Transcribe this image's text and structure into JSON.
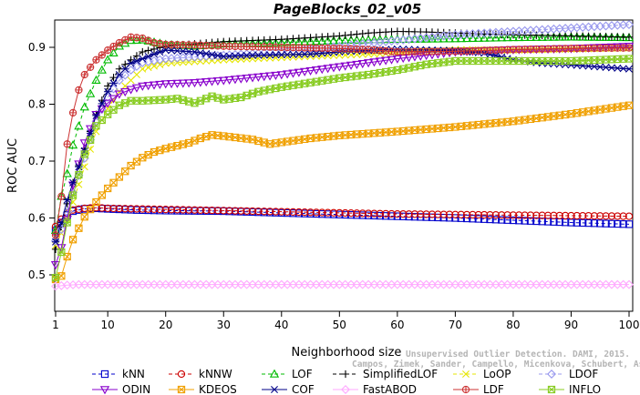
{
  "watermark": {
    "line1": "Unsupervised Outlier Detection. DAMI, 2015.",
    "line2": "Campos, Zimek, Sander, Campello, Micenkova, Schubert, Assent, Houle"
  },
  "chart_data": {
    "type": "line",
    "title": "PageBlocks_02_v05",
    "xlabel": "Neighborhood size",
    "ylabel": "ROC AUC",
    "xlim": [
      0,
      100
    ],
    "ylim": [
      0.45,
      0.95
    ],
    "xticks": [
      1,
      10,
      20,
      30,
      40,
      50,
      60,
      70,
      80,
      90,
      100
    ],
    "yticks": [
      0.5,
      0.6,
      0.7,
      0.8,
      0.9
    ],
    "grid": false,
    "legend_position": "bottom",
    "series": [
      {
        "name": "kNN",
        "color": "#0000cc",
        "marker": "square",
        "line": "dashed",
        "points": [
          [
            1,
            0.578
          ],
          [
            2,
            0.592
          ],
          [
            3,
            0.605
          ],
          [
            4,
            0.612
          ],
          [
            6,
            0.616
          ],
          [
            8,
            0.617
          ],
          [
            10,
            0.616
          ],
          [
            15,
            0.614
          ],
          [
            20,
            0.613
          ],
          [
            30,
            0.612
          ],
          [
            40,
            0.609
          ],
          [
            50,
            0.606
          ],
          [
            60,
            0.603
          ],
          [
            70,
            0.6
          ],
          [
            80,
            0.596
          ],
          [
            90,
            0.592
          ],
          [
            100,
            0.589
          ]
        ]
      },
      {
        "name": "kNNW",
        "color": "#cc0000",
        "marker": "circle",
        "line": "dashed",
        "points": [
          [
            1,
            0.585
          ],
          [
            2,
            0.598
          ],
          [
            3,
            0.608
          ],
          [
            4,
            0.614
          ],
          [
            6,
            0.617
          ],
          [
            8,
            0.618
          ],
          [
            10,
            0.617
          ],
          [
            15,
            0.616
          ],
          [
            20,
            0.615
          ],
          [
            30,
            0.613
          ],
          [
            40,
            0.611
          ],
          [
            50,
            0.609
          ],
          [
            60,
            0.607
          ],
          [
            70,
            0.606
          ],
          [
            80,
            0.605
          ],
          [
            90,
            0.604
          ],
          [
            100,
            0.603
          ]
        ]
      },
      {
        "name": "LOF",
        "color": "#00bb00",
        "marker": "triangle-up",
        "line": "dashed",
        "points": [
          [
            1,
            0.578
          ],
          [
            2,
            0.638
          ],
          [
            3,
            0.678
          ],
          [
            4,
            0.728
          ],
          [
            6,
            0.795
          ],
          [
            8,
            0.842
          ],
          [
            10,
            0.878
          ],
          [
            12,
            0.902
          ],
          [
            14,
            0.912
          ],
          [
            16,
            0.913
          ],
          [
            20,
            0.905
          ],
          [
            25,
            0.902
          ],
          [
            30,
            0.906
          ],
          [
            40,
            0.908
          ],
          [
            50,
            0.912
          ],
          [
            60,
            0.914
          ],
          [
            70,
            0.915
          ],
          [
            80,
            0.917
          ],
          [
            90,
            0.918
          ],
          [
            100,
            0.917
          ]
        ]
      },
      {
        "name": "SimplifiedLOF",
        "color": "#000000",
        "marker": "plus",
        "line": "dashed",
        "points": [
          [
            1,
            0.545
          ],
          [
            2,
            0.585
          ],
          [
            3,
            0.625
          ],
          [
            4,
            0.662
          ],
          [
            6,
            0.722
          ],
          [
            8,
            0.782
          ],
          [
            10,
            0.832
          ],
          [
            12,
            0.862
          ],
          [
            14,
            0.878
          ],
          [
            16,
            0.892
          ],
          [
            20,
            0.902
          ],
          [
            25,
            0.906
          ],
          [
            30,
            0.91
          ],
          [
            40,
            0.914
          ],
          [
            50,
            0.92
          ],
          [
            55,
            0.925
          ],
          [
            60,
            0.928
          ],
          [
            65,
            0.927
          ],
          [
            70,
            0.925
          ],
          [
            80,
            0.922
          ],
          [
            90,
            0.92
          ],
          [
            100,
            0.918
          ]
        ]
      },
      {
        "name": "LoOP",
        "color": "#e6e600",
        "marker": "x",
        "line": "dashed",
        "points": [
          [
            1,
            0.552
          ],
          [
            2,
            0.573
          ],
          [
            3,
            0.598
          ],
          [
            4,
            0.628
          ],
          [
            6,
            0.69
          ],
          [
            8,
            0.752
          ],
          [
            10,
            0.792
          ],
          [
            12,
            0.822
          ],
          [
            14,
            0.842
          ],
          [
            16,
            0.862
          ],
          [
            20,
            0.872
          ],
          [
            30,
            0.878
          ],
          [
            40,
            0.882
          ],
          [
            50,
            0.886
          ],
          [
            60,
            0.89
          ],
          [
            70,
            0.896
          ],
          [
            80,
            0.895
          ],
          [
            90,
            0.897
          ],
          [
            100,
            0.899
          ]
        ]
      },
      {
        "name": "LDOF",
        "color": "#9999ee",
        "marker": "diamond",
        "line": "dashed",
        "points": [
          [
            1,
            0.56
          ],
          [
            2,
            0.58
          ],
          [
            3,
            0.61
          ],
          [
            4,
            0.645
          ],
          [
            6,
            0.705
          ],
          [
            8,
            0.77
          ],
          [
            10,
            0.812
          ],
          [
            12,
            0.842
          ],
          [
            14,
            0.86
          ],
          [
            16,
            0.873
          ],
          [
            20,
            0.88
          ],
          [
            30,
            0.886
          ],
          [
            40,
            0.892
          ],
          [
            50,
            0.902
          ],
          [
            60,
            0.912
          ],
          [
            70,
            0.922
          ],
          [
            80,
            0.928
          ],
          [
            90,
            0.934
          ],
          [
            100,
            0.94
          ]
        ]
      },
      {
        "name": "ODIN",
        "color": "#8800cc",
        "marker": "triangle-down",
        "line": "solid",
        "points": [
          [
            1,
            0.518
          ],
          [
            2,
            0.548
          ],
          [
            3,
            0.598
          ],
          [
            4,
            0.658
          ],
          [
            6,
            0.732
          ],
          [
            8,
            0.782
          ],
          [
            10,
            0.802
          ],
          [
            12,
            0.818
          ],
          [
            14,
            0.826
          ],
          [
            16,
            0.832
          ],
          [
            20,
            0.836
          ],
          [
            25,
            0.838
          ],
          [
            30,
            0.842
          ],
          [
            40,
            0.852
          ],
          [
            50,
            0.866
          ],
          [
            60,
            0.88
          ],
          [
            70,
            0.892
          ],
          [
            80,
            0.896
          ],
          [
            90,
            0.898
          ],
          [
            100,
            0.902
          ]
        ]
      },
      {
        "name": "KDEOS",
        "color": "#f0a000",
        "marker": "square-x",
        "line": "solid",
        "points": [
          [
            1,
            0.492
          ],
          [
            2,
            0.498
          ],
          [
            3,
            0.532
          ],
          [
            4,
            0.562
          ],
          [
            5,
            0.582
          ],
          [
            6,
            0.602
          ],
          [
            8,
            0.628
          ],
          [
            10,
            0.652
          ],
          [
            12,
            0.672
          ],
          [
            14,
            0.692
          ],
          [
            16,
            0.706
          ],
          [
            18,
            0.716
          ],
          [
            20,
            0.722
          ],
          [
            24,
            0.732
          ],
          [
            26,
            0.74
          ],
          [
            28,
            0.746
          ],
          [
            30,
            0.744
          ],
          [
            35,
            0.738
          ],
          [
            38,
            0.73
          ],
          [
            40,
            0.733
          ],
          [
            45,
            0.74
          ],
          [
            50,
            0.745
          ],
          [
            60,
            0.752
          ],
          [
            70,
            0.76
          ],
          [
            80,
            0.77
          ],
          [
            90,
            0.783
          ],
          [
            100,
            0.798
          ]
        ]
      },
      {
        "name": "COF",
        "color": "#000088",
        "marker": "asterisk",
        "line": "solid",
        "points": [
          [
            1,
            0.558
          ],
          [
            2,
            0.592
          ],
          [
            3,
            0.632
          ],
          [
            4,
            0.662
          ],
          [
            6,
            0.718
          ],
          [
            8,
            0.78
          ],
          [
            10,
            0.822
          ],
          [
            12,
            0.852
          ],
          [
            14,
            0.872
          ],
          [
            16,
            0.88
          ],
          [
            18,
            0.888
          ],
          [
            20,
            0.895
          ],
          [
            25,
            0.892
          ],
          [
            30,
            0.884
          ],
          [
            35,
            0.886
          ],
          [
            40,
            0.887
          ],
          [
            45,
            0.888
          ],
          [
            50,
            0.892
          ],
          [
            60,
            0.897
          ],
          [
            70,
            0.894
          ],
          [
            75,
            0.89
          ],
          [
            80,
            0.878
          ],
          [
            85,
            0.872
          ],
          [
            90,
            0.869
          ],
          [
            100,
            0.862
          ]
        ]
      },
      {
        "name": "FastABOD",
        "color": "#ffaaff",
        "marker": "diamond-open",
        "line": "solid",
        "points": [
          [
            1,
            0.48
          ],
          [
            2,
            0.481
          ],
          [
            3,
            0.482
          ],
          [
            5,
            0.483
          ],
          [
            10,
            0.483
          ],
          [
            20,
            0.483
          ],
          [
            30,
            0.483
          ],
          [
            40,
            0.483
          ],
          [
            50,
            0.483
          ],
          [
            60,
            0.483
          ],
          [
            70,
            0.483
          ],
          [
            80,
            0.483
          ],
          [
            90,
            0.483
          ],
          [
            100,
            0.483
          ]
        ]
      },
      {
        "name": "LDF",
        "color": "#cc3333",
        "marker": "circle-plus",
        "line": "solid",
        "points": [
          [
            1,
            0.57
          ],
          [
            2,
            0.638
          ],
          [
            3,
            0.73
          ],
          [
            4,
            0.785
          ],
          [
            5,
            0.825
          ],
          [
            6,
            0.852
          ],
          [
            8,
            0.878
          ],
          [
            10,
            0.895
          ],
          [
            12,
            0.908
          ],
          [
            14,
            0.918
          ],
          [
            16,
            0.916
          ],
          [
            18,
            0.908
          ],
          [
            20,
            0.905
          ],
          [
            25,
            0.904
          ],
          [
            30,
            0.902
          ],
          [
            40,
            0.9
          ],
          [
            50,
            0.898
          ],
          [
            55,
            0.896
          ],
          [
            60,
            0.892
          ],
          [
            70,
            0.893
          ],
          [
            80,
            0.896
          ],
          [
            90,
            0.898
          ],
          [
            100,
            0.899
          ]
        ]
      },
      {
        "name": "INFLO",
        "color": "#88cc22",
        "marker": "square-cross",
        "line": "solid",
        "points": [
          [
            1,
            0.495
          ],
          [
            2,
            0.54
          ],
          [
            3,
            0.592
          ],
          [
            4,
            0.64
          ],
          [
            6,
            0.712
          ],
          [
            8,
            0.762
          ],
          [
            10,
            0.782
          ],
          [
            12,
            0.798
          ],
          [
            14,
            0.806
          ],
          [
            16,
            0.806
          ],
          [
            20,
            0.808
          ],
          [
            22,
            0.81
          ],
          [
            25,
            0.802
          ],
          [
            28,
            0.814
          ],
          [
            30,
            0.808
          ],
          [
            33,
            0.812
          ],
          [
            36,
            0.822
          ],
          [
            40,
            0.83
          ],
          [
            45,
            0.838
          ],
          [
            50,
            0.846
          ],
          [
            55,
            0.852
          ],
          [
            60,
            0.86
          ],
          [
            65,
            0.87
          ],
          [
            70,
            0.876
          ],
          [
            80,
            0.876
          ],
          [
            90,
            0.876
          ],
          [
            100,
            0.88
          ]
        ]
      }
    ]
  }
}
